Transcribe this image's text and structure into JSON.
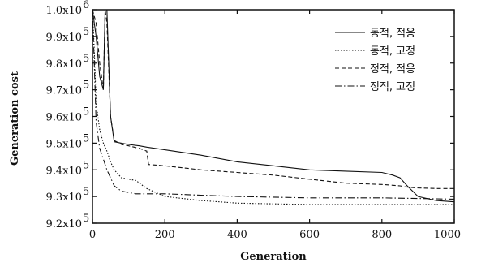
{
  "chart_data": {
    "type": "line",
    "xlabel": "Generation",
    "ylabel": "Generation cost",
    "xlim": [
      0,
      1000
    ],
    "ylim": [
      920000,
      1000000
    ],
    "x_ticks": [
      0,
      200,
      400,
      600,
      800,
      1000
    ],
    "x_tick_labels": [
      "0",
      "200",
      "400",
      "600",
      "800",
      "1000"
    ],
    "y_ticks": [
      920000,
      930000,
      940000,
      950000,
      960000,
      970000,
      980000,
      990000,
      1000000
    ],
    "y_tick_mantissas": [
      "9.2x10",
      "9.3x10",
      "9.4x10",
      "9.5x10",
      "9.6x10",
      "9.7x10",
      "9.8x10",
      "9.9x10",
      "1.0x10"
    ],
    "y_tick_exponent": "5",
    "y_tick_exponent_top": "6",
    "grid": false,
    "legend_position": "top-right",
    "series": [
      {
        "name": "동적, 적응",
        "style": "solid",
        "x": [
          0,
          10,
          20,
          30,
          35,
          40,
          50,
          60,
          80,
          100,
          130,
          150,
          200,
          300,
          400,
          500,
          600,
          700,
          800,
          830,
          850,
          870,
          900,
          950,
          1000
        ],
        "y": [
          1000000,
          990000,
          975000,
          970000,
          1000000,
          1000000,
          960000,
          950500,
          950000,
          949500,
          949000,
          948500,
          947500,
          945500,
          943000,
          941500,
          940000,
          939500,
          939000,
          938000,
          937000,
          934000,
          930000,
          928500,
          928000
        ]
      },
      {
        "name": "동적, 고정",
        "style": "dotted",
        "x": [
          0,
          5,
          10,
          20,
          30,
          40,
          50,
          60,
          80,
          100,
          120,
          150,
          200,
          300,
          400,
          600,
          800,
          1000
        ],
        "y": [
          1000000,
          985000,
          965000,
          955000,
          950000,
          947000,
          943000,
          940000,
          937000,
          936500,
          936000,
          933000,
          930000,
          928500,
          927500,
          927000,
          927000,
          927000
        ]
      },
      {
        "name": "정적, 적응",
        "style": "dashed",
        "x": [
          0,
          10,
          20,
          30,
          35,
          40,
          50,
          60,
          80,
          100,
          130,
          150,
          155,
          200,
          300,
          400,
          500,
          600,
          700,
          800,
          850,
          870,
          900,
          950,
          1000
        ],
        "y": [
          1000000,
          995000,
          980000,
          970000,
          1000000,
          995000,
          960000,
          951000,
          949500,
          949000,
          948000,
          947000,
          942000,
          941500,
          940000,
          939000,
          938000,
          936500,
          935000,
          934500,
          934000,
          933500,
          933200,
          933000,
          933000
        ]
      },
      {
        "name": "정적, 고정",
        "style": "dashdot",
        "x": [
          0,
          5,
          10,
          20,
          30,
          40,
          50,
          60,
          80,
          100,
          120,
          150,
          200,
          300,
          400,
          600,
          800,
          1000
        ],
        "y": [
          1000000,
          980000,
          958000,
          948000,
          944000,
          940000,
          937000,
          934000,
          932000,
          931500,
          931000,
          931000,
          931000,
          930500,
          930000,
          929500,
          929500,
          929000
        ]
      }
    ]
  }
}
